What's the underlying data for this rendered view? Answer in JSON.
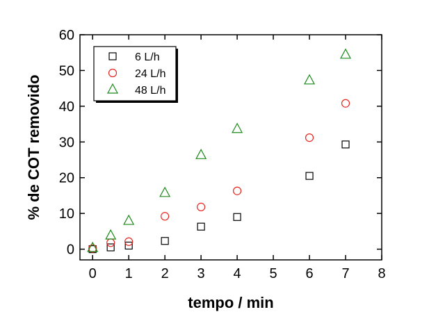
{
  "chart_data": {
    "type": "scatter",
    "xlabel": "tempo / min",
    "ylabel": "% de COT removido",
    "xlim": [
      -0.35,
      8
    ],
    "ylim": [
      -3,
      60
    ],
    "xticks": [
      0,
      1,
      2,
      3,
      4,
      5,
      6,
      7,
      8
    ],
    "yticks": [
      0,
      10,
      20,
      30,
      40,
      50,
      60
    ],
    "legend_position": "top-left",
    "series": [
      {
        "name": "6 L/h",
        "marker": "square",
        "color": "#000000",
        "points": [
          [
            0,
            0
          ],
          [
            0.5,
            0.5
          ],
          [
            1,
            1
          ],
          [
            2,
            2.3
          ],
          [
            3,
            6.3
          ],
          [
            4,
            9
          ],
          [
            6,
            20.5
          ],
          [
            7,
            29.3
          ]
        ]
      },
      {
        "name": "24 L/h",
        "marker": "circle",
        "color": "#e8221c",
        "points": [
          [
            0,
            0.2
          ],
          [
            0.5,
            1.8
          ],
          [
            1,
            2.1
          ],
          [
            2,
            9.2
          ],
          [
            3,
            11.8
          ],
          [
            4,
            16.3
          ],
          [
            6,
            31.2
          ],
          [
            7,
            40.8
          ]
        ]
      },
      {
        "name": "48 L/h",
        "marker": "triangle",
        "color": "#1a8a1a",
        "points": [
          [
            0,
            0.3
          ],
          [
            0.5,
            3.8
          ],
          [
            1,
            7.9
          ],
          [
            2,
            15.7
          ],
          [
            3,
            26.3
          ],
          [
            4,
            33.6
          ],
          [
            6,
            47.2
          ],
          [
            7,
            54.4
          ]
        ]
      }
    ]
  }
}
